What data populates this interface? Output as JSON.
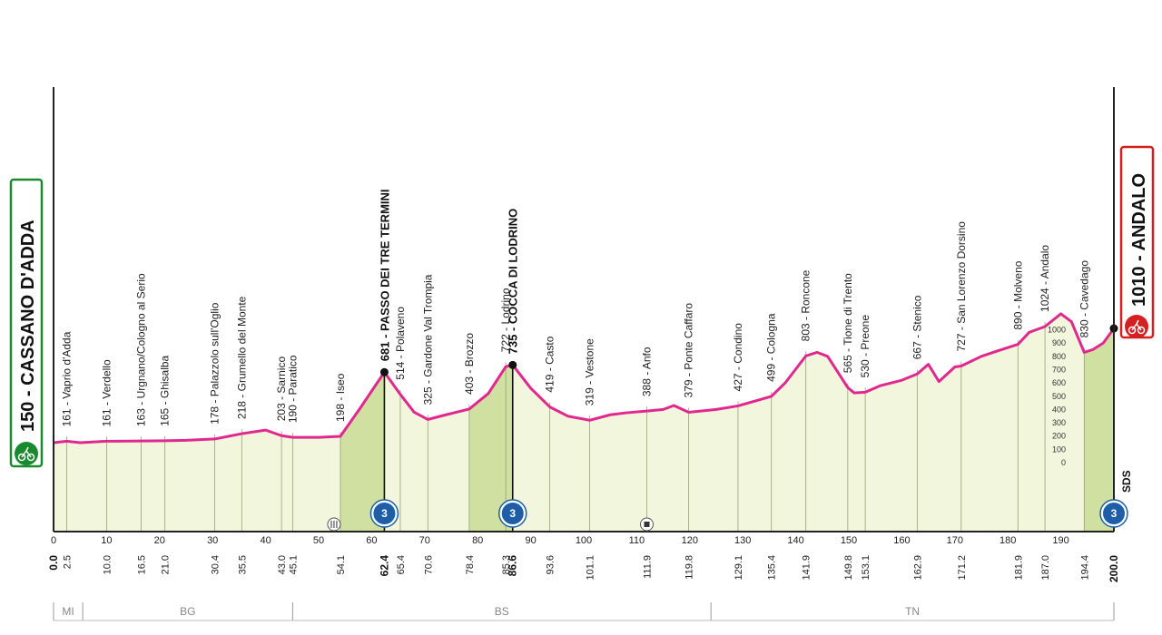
{
  "start": {
    "label": "150 - CASSANO D'ADDA",
    "color": "#1a8a2e"
  },
  "finish": {
    "label": "1010 - ANDALO",
    "color": "#d42020"
  },
  "finish_side_mark": "SDS",
  "colors": {
    "profile_line": "#e0288f",
    "fill_light": "#f2f6dc",
    "fill_climb": "#cfe0a0",
    "axis": "#222",
    "badge": "#1e5ea8"
  },
  "chart_data": {
    "type": "area",
    "xlim": [
      0,
      200
    ],
    "ylim": [
      0,
      1000
    ],
    "y_ticks": [
      0,
      100,
      200,
      300,
      400,
      500,
      600,
      700,
      800,
      900,
      1000
    ],
    "x_ticks": [
      0,
      10,
      20,
      30,
      40,
      50,
      60,
      70,
      80,
      90,
      100,
      110,
      120,
      130,
      140,
      150,
      160,
      170,
      180,
      190
    ],
    "profile": [
      [
        0,
        150
      ],
      [
        2.5,
        161
      ],
      [
        5,
        150
      ],
      [
        10,
        161
      ],
      [
        16.5,
        163
      ],
      [
        21,
        165
      ],
      [
        25,
        168
      ],
      [
        30.4,
        178
      ],
      [
        35.5,
        218
      ],
      [
        40,
        245
      ],
      [
        43,
        203
      ],
      [
        45.1,
        190
      ],
      [
        50,
        190
      ],
      [
        54.1,
        198
      ],
      [
        58,
        420
      ],
      [
        62.4,
        681
      ],
      [
        65.4,
        514
      ],
      [
        68,
        380
      ],
      [
        70.6,
        325
      ],
      [
        74,
        360
      ],
      [
        78.4,
        403
      ],
      [
        82,
        520
      ],
      [
        85.3,
        722
      ],
      [
        86.6,
        735
      ],
      [
        90,
        560
      ],
      [
        93.6,
        419
      ],
      [
        97,
        350
      ],
      [
        101.1,
        319
      ],
      [
        105,
        360
      ],
      [
        108,
        375
      ],
      [
        111.9,
        388
      ],
      [
        115,
        400
      ],
      [
        117,
        430
      ],
      [
        119.8,
        379
      ],
      [
        125,
        400
      ],
      [
        129.1,
        427
      ],
      [
        135.4,
        499
      ],
      [
        138,
        600
      ],
      [
        141.9,
        803
      ],
      [
        144,
        830
      ],
      [
        146,
        800
      ],
      [
        149.8,
        565
      ],
      [
        151,
        525
      ],
      [
        153.1,
        530
      ],
      [
        156,
        580
      ],
      [
        160,
        620
      ],
      [
        162.9,
        667
      ],
      [
        165,
        740
      ],
      [
        167,
        610
      ],
      [
        170,
        720
      ],
      [
        171.2,
        727
      ],
      [
        175,
        800
      ],
      [
        178,
        840
      ],
      [
        181.9,
        890
      ],
      [
        184,
        980
      ],
      [
        187,
        1024
      ],
      [
        190,
        1120
      ],
      [
        192,
        1060
      ],
      [
        194.4,
        830
      ],
      [
        196,
        850
      ],
      [
        198,
        900
      ],
      [
        200,
        1010
      ]
    ],
    "climb_sections": [
      [
        54.1,
        62.4
      ],
      [
        78.4,
        86.6
      ],
      [
        194.4,
        200
      ]
    ],
    "waypoints": [
      {
        "km": 2.5,
        "ele": 161,
        "label": "161 - Vaprio d'Adda",
        "km_label": "2.5"
      },
      {
        "km": 10,
        "ele": 161,
        "label": "161 - Verdello",
        "km_label": "10.0"
      },
      {
        "km": 16.5,
        "ele": 163,
        "label": "163 - Urgnano/Cologno al Serio",
        "km_label": "16.5"
      },
      {
        "km": 21,
        "ele": 165,
        "label": "165 - Ghisalba",
        "km_label": "21.0"
      },
      {
        "km": 30.4,
        "ele": 178,
        "label": "178 - Palazzolo sull'Oglio",
        "km_label": "30.4"
      },
      {
        "km": 35.5,
        "ele": 218,
        "label": "218 - Grumello del Monte",
        "km_label": "35.5"
      },
      {
        "km": 43,
        "ele": 203,
        "label": "203 - Sarnico",
        "km_label": "43.0"
      },
      {
        "km": 45.1,
        "ele": 190,
        "label": "190 - Paratico",
        "km_label": "45.1"
      },
      {
        "km": 54.1,
        "ele": 198,
        "label": "198 - Iseo",
        "km_label": "54.1"
      },
      {
        "km": 62.4,
        "ele": 681,
        "label": "681 - PASSO DEI TRE TERMINI",
        "km_label": "62.4",
        "bold": true
      },
      {
        "km": 65.4,
        "ele": 514,
        "label": "514 - Polaveno",
        "km_label": "65.4"
      },
      {
        "km": 70.6,
        "ele": 325,
        "label": "325 - Gardone Val Trompia",
        "km_label": "70.6"
      },
      {
        "km": 78.4,
        "ele": 403,
        "label": "403 - Brozzo",
        "km_label": "78.4"
      },
      {
        "km": 85.3,
        "ele": 722,
        "label": "722 - Lodrino",
        "km_label": "85.3"
      },
      {
        "km": 86.6,
        "ele": 735,
        "label": "735 - COCCA DI LODRINO",
        "km_label": "86.6",
        "bold": true
      },
      {
        "km": 93.6,
        "ele": 419,
        "label": "419 - Casto",
        "km_label": "93.6"
      },
      {
        "km": 101.1,
        "ele": 319,
        "label": "319 - Vestone",
        "km_label": "101.1"
      },
      {
        "km": 111.9,
        "ele": 388,
        "label": "388 - Anfo",
        "km_label": "111.9"
      },
      {
        "km": 119.8,
        "ele": 379,
        "label": "379 - Ponte Caffaro",
        "km_label": "119.8"
      },
      {
        "km": 129.1,
        "ele": 427,
        "label": "427 - Condino",
        "km_label": "129.1"
      },
      {
        "km": 135.4,
        "ele": 499,
        "label": "499 - Cologna",
        "km_label": "135.4"
      },
      {
        "km": 141.9,
        "ele": 803,
        "label": "803 - Roncone",
        "km_label": "141.9"
      },
      {
        "km": 149.8,
        "ele": 565,
        "label": "565 - Tione di Trento",
        "km_label": "149.8"
      },
      {
        "km": 153.1,
        "ele": 530,
        "label": "530 - Preone",
        "km_label": "153.1"
      },
      {
        "km": 162.9,
        "ele": 667,
        "label": "667 - Stenico",
        "km_label": "162.9"
      },
      {
        "km": 171.2,
        "ele": 727,
        "label": "727 - San Lorenzo Dorsino",
        "km_label": "171.2"
      },
      {
        "km": 181.9,
        "ele": 890,
        "label": "890 - Molveno",
        "km_label": "181.9"
      },
      {
        "km": 187,
        "ele": 1024,
        "label": "1024 - Andalo",
        "km_label": "187.0"
      },
      {
        "km": 194.4,
        "ele": 830,
        "label": "830 - Cavedago",
        "km_label": "194.4"
      }
    ],
    "end_km_labels": {
      "start": "0.0",
      "finish": "200.0"
    },
    "climbs": [
      {
        "km": 62.4,
        "category": "3"
      },
      {
        "km": 86.6,
        "category": "3"
      },
      {
        "km": 200,
        "category": "3"
      }
    ],
    "sprints": [
      {
        "km": 54.1
      }
    ],
    "feeds": [
      {
        "km": 111.9
      }
    ],
    "regions": [
      {
        "label": "MI",
        "from": 0,
        "to": 5.5
      },
      {
        "label": "BG",
        "from": 5.5,
        "to": 45.1
      },
      {
        "label": "BS",
        "from": 45.1,
        "to": 124
      },
      {
        "label": "TN",
        "from": 124,
        "to": 200
      }
    ]
  }
}
